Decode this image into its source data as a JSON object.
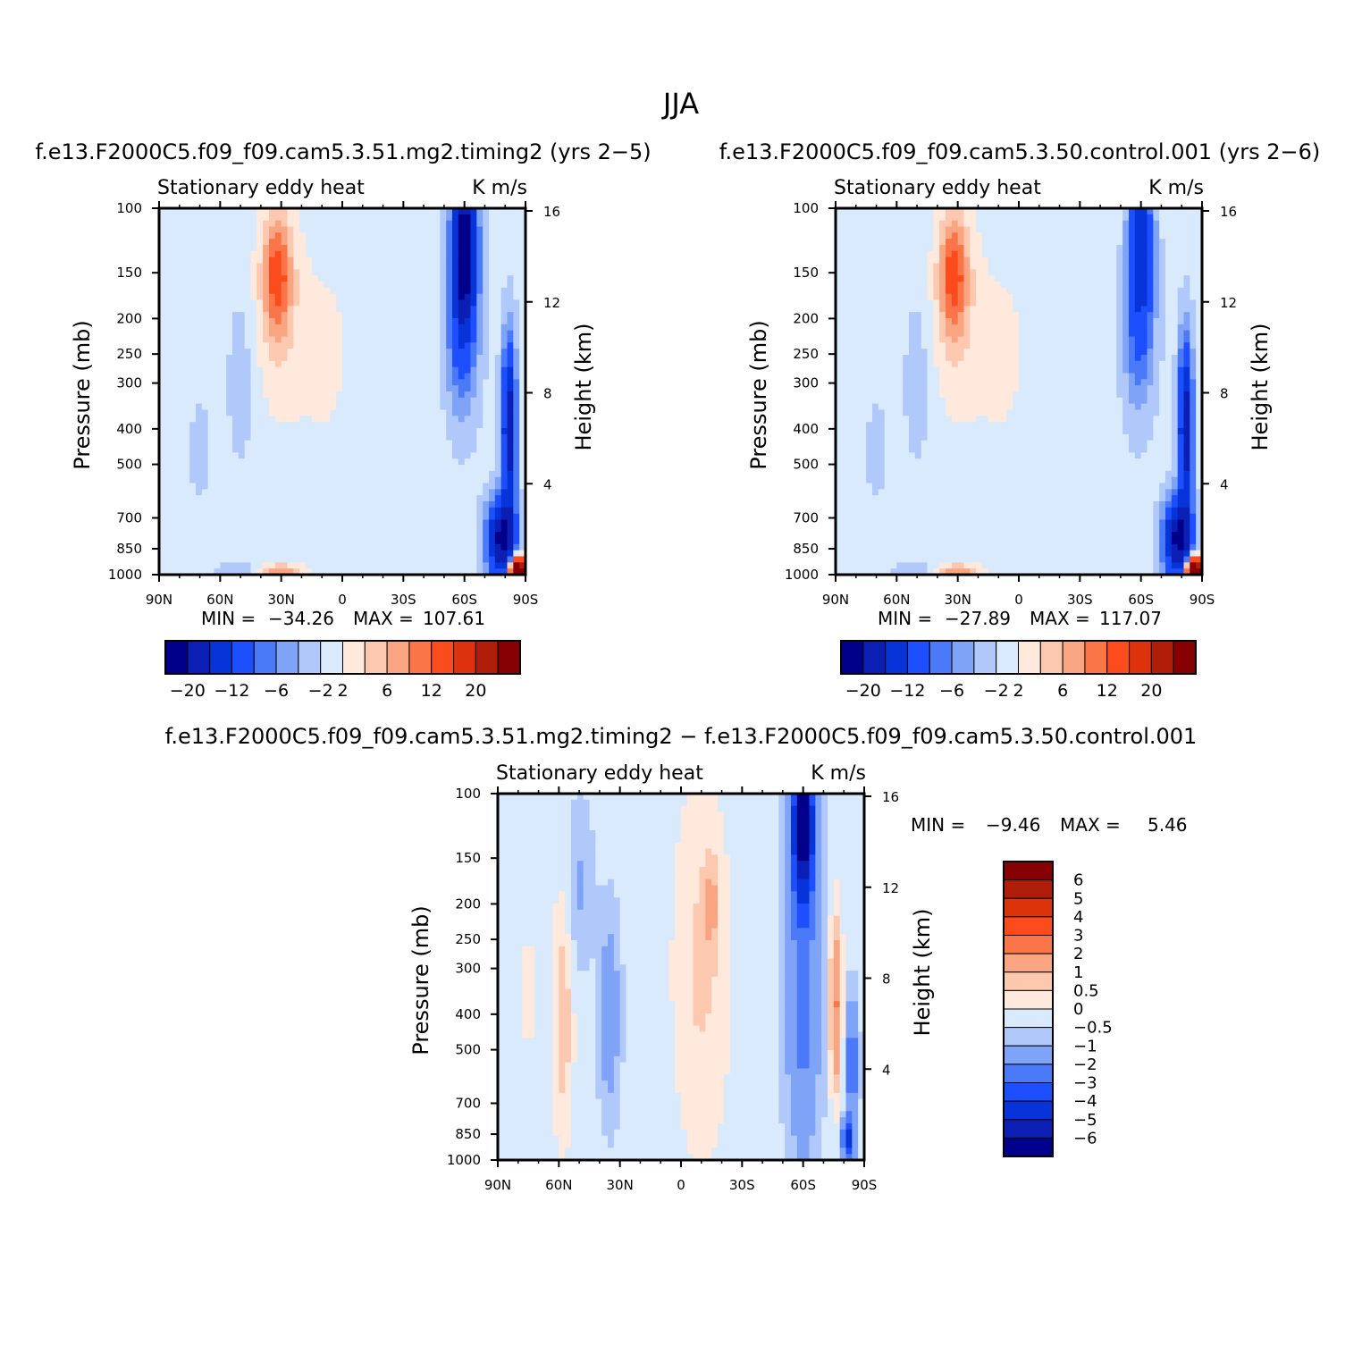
{
  "page_title": "JJA",
  "colors": {
    "panel_scale": [
      "#00008b",
      "#0c1fb5",
      "#0634d8",
      "#1d4ffe",
      "#4a7af8",
      "#7fa4f7",
      "#b1c9fa",
      "#d8eafc",
      "#fee9dc",
      "#fcc9b0",
      "#f9a581",
      "#fa7548",
      "#fc4b1d",
      "#dc330d",
      "#b01e0a",
      "#870003"
    ],
    "diff_scale": [
      "#00008b",
      "#0c1fb5",
      "#0634d8",
      "#1d4ffe",
      "#4a7af8",
      "#7fa4f7",
      "#b1c9fa",
      "#d8eafc",
      "#fee9dc",
      "#fcc9b0",
      "#f9a581",
      "#fa7548",
      "#fc4b1d",
      "#dc330d",
      "#b01e0a",
      "#870003"
    ]
  },
  "chart_data": [
    {
      "type": "heatmap",
      "id": "panel1",
      "title": "f.e13.F2000C5.f09_f09.cam5.3.51.mg2.timing2 (yrs 2−5)",
      "field_label": "Stationary eddy heat",
      "units": "K m/s",
      "ylabel": "Pressure (mb)",
      "y2label": "Height (km)",
      "x_ticks": [
        "90N",
        "60N",
        "30N",
        "0",
        "30S",
        "60S",
        "90S"
      ],
      "x_range": [
        90,
        -90
      ],
      "y_ticks": [
        "100",
        "150",
        "200",
        "250",
        "300",
        "400",
        "500",
        "700",
        "850",
        "1000"
      ],
      "y_range": [
        100,
        1000
      ],
      "y2_ticks": [
        "16",
        "12",
        "8",
        "4"
      ],
      "min_label": "MIN =",
      "min_value": "−34.26",
      "max_label": "MAX =",
      "max_value": "107.61",
      "colorbar_labels": [
        "−20",
        "−12",
        "−6",
        "−2",
        "2",
        "6",
        "12",
        "20"
      ],
      "levels": [
        -20,
        -16,
        -12,
        -8,
        -6,
        -4,
        -2,
        0,
        2,
        4,
        6,
        8,
        12,
        16,
        20
      ]
    },
    {
      "type": "heatmap",
      "id": "panel2",
      "title": "f.e13.F2000C5.f09_f09.cam5.3.50.control.001 (yrs 2−6)",
      "field_label": "Stationary eddy heat",
      "units": "K m/s",
      "ylabel": "Pressure (mb)",
      "y2label": "Height (km)",
      "x_ticks": [
        "90N",
        "60N",
        "30N",
        "0",
        "30S",
        "60S",
        "90S"
      ],
      "x_range": [
        90,
        -90
      ],
      "y_ticks": [
        "100",
        "150",
        "200",
        "250",
        "300",
        "400",
        "500",
        "700",
        "850",
        "1000"
      ],
      "y_range": [
        100,
        1000
      ],
      "y2_ticks": [
        "16",
        "12",
        "8",
        "4"
      ],
      "min_label": "MIN =",
      "min_value": "−27.89",
      "max_label": "MAX =",
      "max_value": "117.07",
      "colorbar_labels": [
        "−20",
        "−12",
        "−6",
        "−2",
        "2",
        "6",
        "12",
        "20"
      ],
      "levels": [
        -20,
        -16,
        -12,
        -8,
        -6,
        -4,
        -2,
        0,
        2,
        4,
        6,
        8,
        12,
        16,
        20
      ]
    },
    {
      "type": "heatmap",
      "id": "diff",
      "title": "f.e13.F2000C5.f09_f09.cam5.3.51.mg2.timing2 − f.e13.F2000C5.f09_f09.cam5.3.50.control.001",
      "field_label": "Stationary eddy heat",
      "units": "K m/s",
      "ylabel": "Pressure (mb)",
      "y2label": "Height (km)",
      "x_ticks": [
        "90N",
        "60N",
        "30N",
        "0",
        "30S",
        "60S",
        "90S"
      ],
      "x_range": [
        90,
        -90
      ],
      "y_ticks": [
        "100",
        "150",
        "200",
        "250",
        "300",
        "400",
        "500",
        "700",
        "850",
        "1000"
      ],
      "y_range": [
        100,
        1000
      ],
      "y2_ticks": [
        "16",
        "12",
        "8",
        "4"
      ],
      "min_label": "MIN =",
      "min_value": "−9.46",
      "max_label": "MAX =",
      "max_value": "5.46",
      "colorbar_labels": [
        "6",
        "5",
        "4",
        "3",
        "2",
        "1",
        "0.5",
        "0",
        "−0.5",
        "−1",
        "−2",
        "−3",
        "−4",
        "−5",
        "−6"
      ],
      "levels": [
        -6,
        -5,
        -4,
        -3,
        -2,
        -1,
        -0.5,
        0,
        0.5,
        1,
        2,
        3,
        4,
        5,
        6
      ]
    }
  ]
}
